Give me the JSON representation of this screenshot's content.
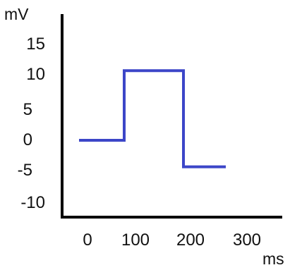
{
  "chart_data": {
    "type": "line",
    "title": "",
    "ylabel": "mV",
    "xlabel": "ms",
    "y_ticks": [
      "15",
      "10",
      "5",
      "0",
      "-5",
      "-10"
    ],
    "x_ticks": [
      "0",
      "100",
      "200",
      "300"
    ],
    "xlim": [
      -30,
      350
    ],
    "ylim": [
      -12,
      20
    ],
    "grid": false,
    "legend": "none",
    "series": [
      {
        "color": "#3c46c8",
        "x": [
          -15,
          65,
          65,
          170,
          170,
          245
        ],
        "y": [
          0,
          0,
          10.5,
          10.5,
          -4,
          -4
        ]
      }
    ]
  }
}
